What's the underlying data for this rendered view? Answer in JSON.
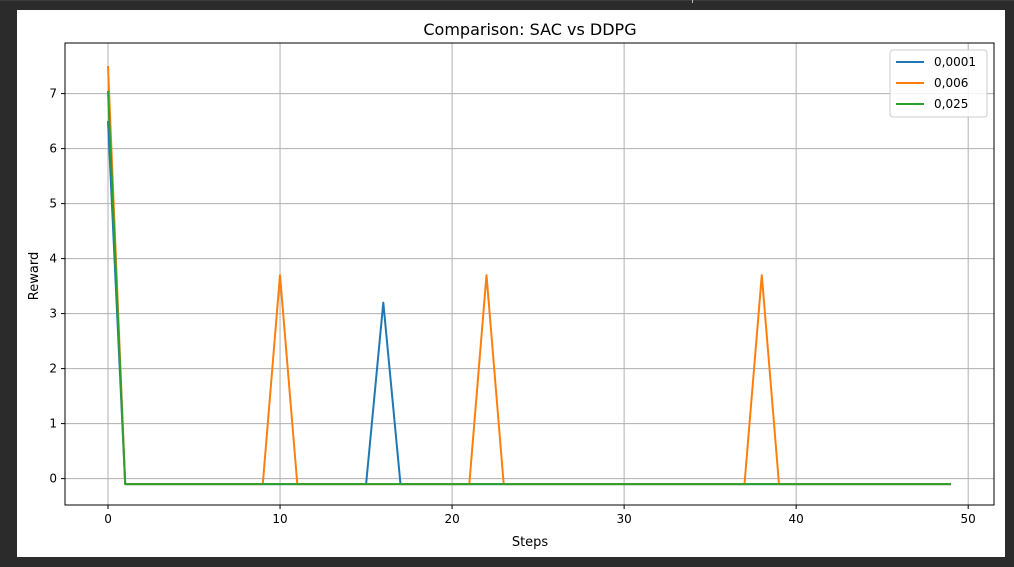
{
  "chart_data": {
    "type": "line",
    "title": "Comparison: SAC vs DDPG",
    "xlabel": "Steps",
    "ylabel": "Reward",
    "xlim": [
      -2.5,
      51.5
    ],
    "ylim": [
      -0.48,
      7.92
    ],
    "xticks": [
      0,
      10,
      20,
      30,
      40,
      50
    ],
    "yticks": [
      0,
      1,
      2,
      3,
      4,
      5,
      6,
      7
    ],
    "grid": true,
    "legend_position": "top-right",
    "series": [
      {
        "name": "0,0001",
        "color": "#1f77b4",
        "points": [
          [
            0,
            6.5
          ],
          [
            1,
            -0.1
          ],
          [
            15,
            -0.1
          ],
          [
            16,
            3.2
          ],
          [
            17,
            -0.1
          ],
          [
            49,
            -0.1
          ]
        ]
      },
      {
        "name": "0,006",
        "color": "#ff7f0e",
        "points": [
          [
            0,
            7.5
          ],
          [
            1,
            -0.1
          ],
          [
            9,
            -0.1
          ],
          [
            10,
            3.7
          ],
          [
            11,
            -0.1
          ],
          [
            21,
            -0.1
          ],
          [
            22,
            3.7
          ],
          [
            23,
            -0.1
          ],
          [
            37,
            -0.1
          ],
          [
            38,
            3.7
          ],
          [
            39,
            -0.1
          ],
          [
            49,
            -0.1
          ]
        ]
      },
      {
        "name": "0,025",
        "color": "#2ca02c",
        "points": [
          [
            0,
            7.05
          ],
          [
            1,
            -0.1
          ],
          [
            49,
            -0.1
          ]
        ]
      }
    ]
  }
}
